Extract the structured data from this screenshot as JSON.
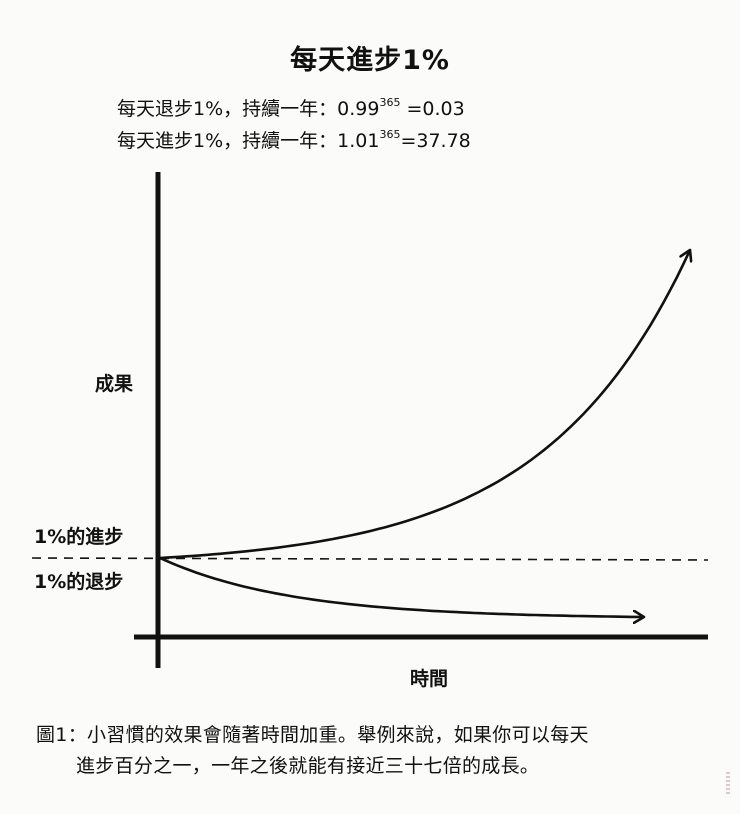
{
  "chart_data": {
    "type": "line",
    "title": "每天進步1%",
    "formulas": [
      {
        "prefix": "每天退步1%，持續一年：0.99",
        "exponent": "365",
        "suffix": " =0.03"
      },
      {
        "prefix": "每天進步1%，持續一年：1.01",
        "exponent": "365",
        "suffix": "=37.78"
      }
    ],
    "ylabel": "成果",
    "xlabel": "時間",
    "baseline_labels": {
      "above": "1%的進步",
      "below": "1%的退步"
    },
    "x_range": [
      0,
      365
    ],
    "y_range": [
      0,
      40
    ],
    "baseline_value": 1,
    "series": [
      {
        "name": "1%的進步",
        "base": 1.01,
        "final_value": 37.78
      },
      {
        "name": "1%的退步",
        "base": 0.99,
        "final_value": 0.03
      }
    ]
  },
  "caption": {
    "line1": "圖1：小習慣的效果會隨著時間加重。舉例來說，如果你可以每天",
    "line2": "進步百分之一，一年之後就能有接近三十七倍的成長。"
  }
}
